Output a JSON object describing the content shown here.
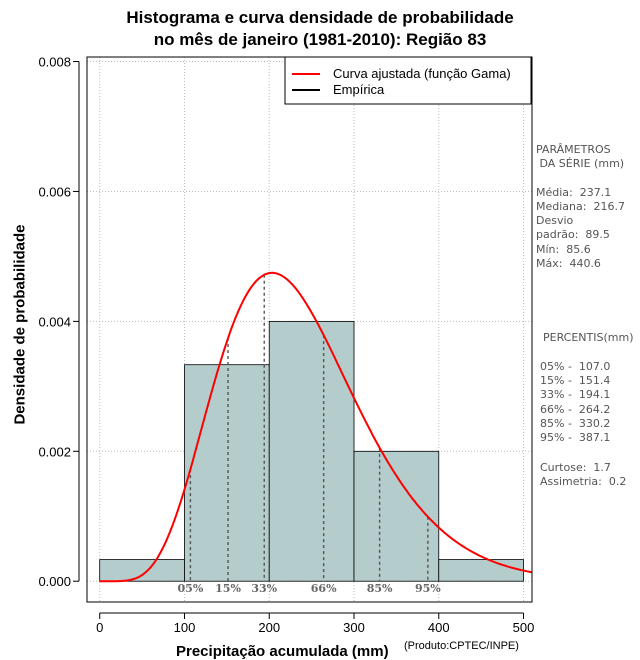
{
  "title_line1": "Histograma e curva densidade de probabilidade",
  "title_line2": "no mês de janeiro (1981-2010): Região 83",
  "chart_data": {
    "type": "histogram",
    "xlabel": "Precipitação acumulada (mm)",
    "ylabel": "Densidade de probabilidade",
    "xlim": [
      -15,
      510
    ],
    "ylim": [
      -0.00032,
      0.00807
    ],
    "x_ticks": [
      0,
      100,
      200,
      300,
      400,
      500
    ],
    "x_tick_labels": [
      "0",
      "100",
      "200",
      "300",
      "400",
      "500"
    ],
    "y_ticks": [
      0.0,
      0.002,
      0.004,
      0.006,
      0.008
    ],
    "y_tick_labels": [
      "0.000",
      "0.002",
      "0.004",
      "0.006",
      "0.008"
    ],
    "grid": true,
    "bins": [
      {
        "x0": 0,
        "x1": 100,
        "density": 0.000333
      },
      {
        "x0": 100,
        "x1": 200,
        "density": 0.003333
      },
      {
        "x0": 200,
        "x1": 300,
        "density": 0.004
      },
      {
        "x0": 300,
        "x1": 400,
        "density": 0.002
      },
      {
        "x0": 400,
        "x1": 500,
        "density": 0.000333
      }
    ],
    "gamma_fit": {
      "mean": 237.1,
      "std": 89.5
    },
    "percentile_lines": [
      {
        "label": "05%",
        "x": 107.0
      },
      {
        "label": "15%",
        "x": 151.4
      },
      {
        "label": "33%",
        "x": 194.1
      },
      {
        "label": "66%",
        "x": 264.2
      },
      {
        "label": "85%",
        "x": 330.2
      },
      {
        "label": "95%",
        "x": 387.1
      }
    ],
    "legend": [
      {
        "label": "Curva ajustada (função Gama)",
        "color": "#ff0000"
      },
      {
        "label": "Empírica",
        "color": "#000000"
      }
    ],
    "legend_position": "top-right"
  },
  "stats": {
    "header1": "PARÂMETROS",
    "header2": " DA SÉRIE (mm)",
    "lines": [
      "Média:  237.1",
      "Mediana:  216.7",
      "Desvio",
      "padrão:  89.5",
      "Mín:  85.6",
      "Máx:  440.6"
    ]
  },
  "percentis": {
    "header": "PERCENTIS(mm)",
    "lines": [
      "05% -  107.0",
      "15% -  151.4",
      "33% -  194.1",
      "66% -  264.2",
      "85% -  330.2",
      "95% -  387.1"
    ]
  },
  "shape": {
    "lines": [
      "Curtose:  1.7",
      "Assimetria:  0.2"
    ]
  },
  "credit": "(Produto:CPTEC/INPE)",
  "colors": {
    "bar_fill": "#b4cccc",
    "curve": "#ff0000",
    "grid": "#bbbbbb"
  }
}
